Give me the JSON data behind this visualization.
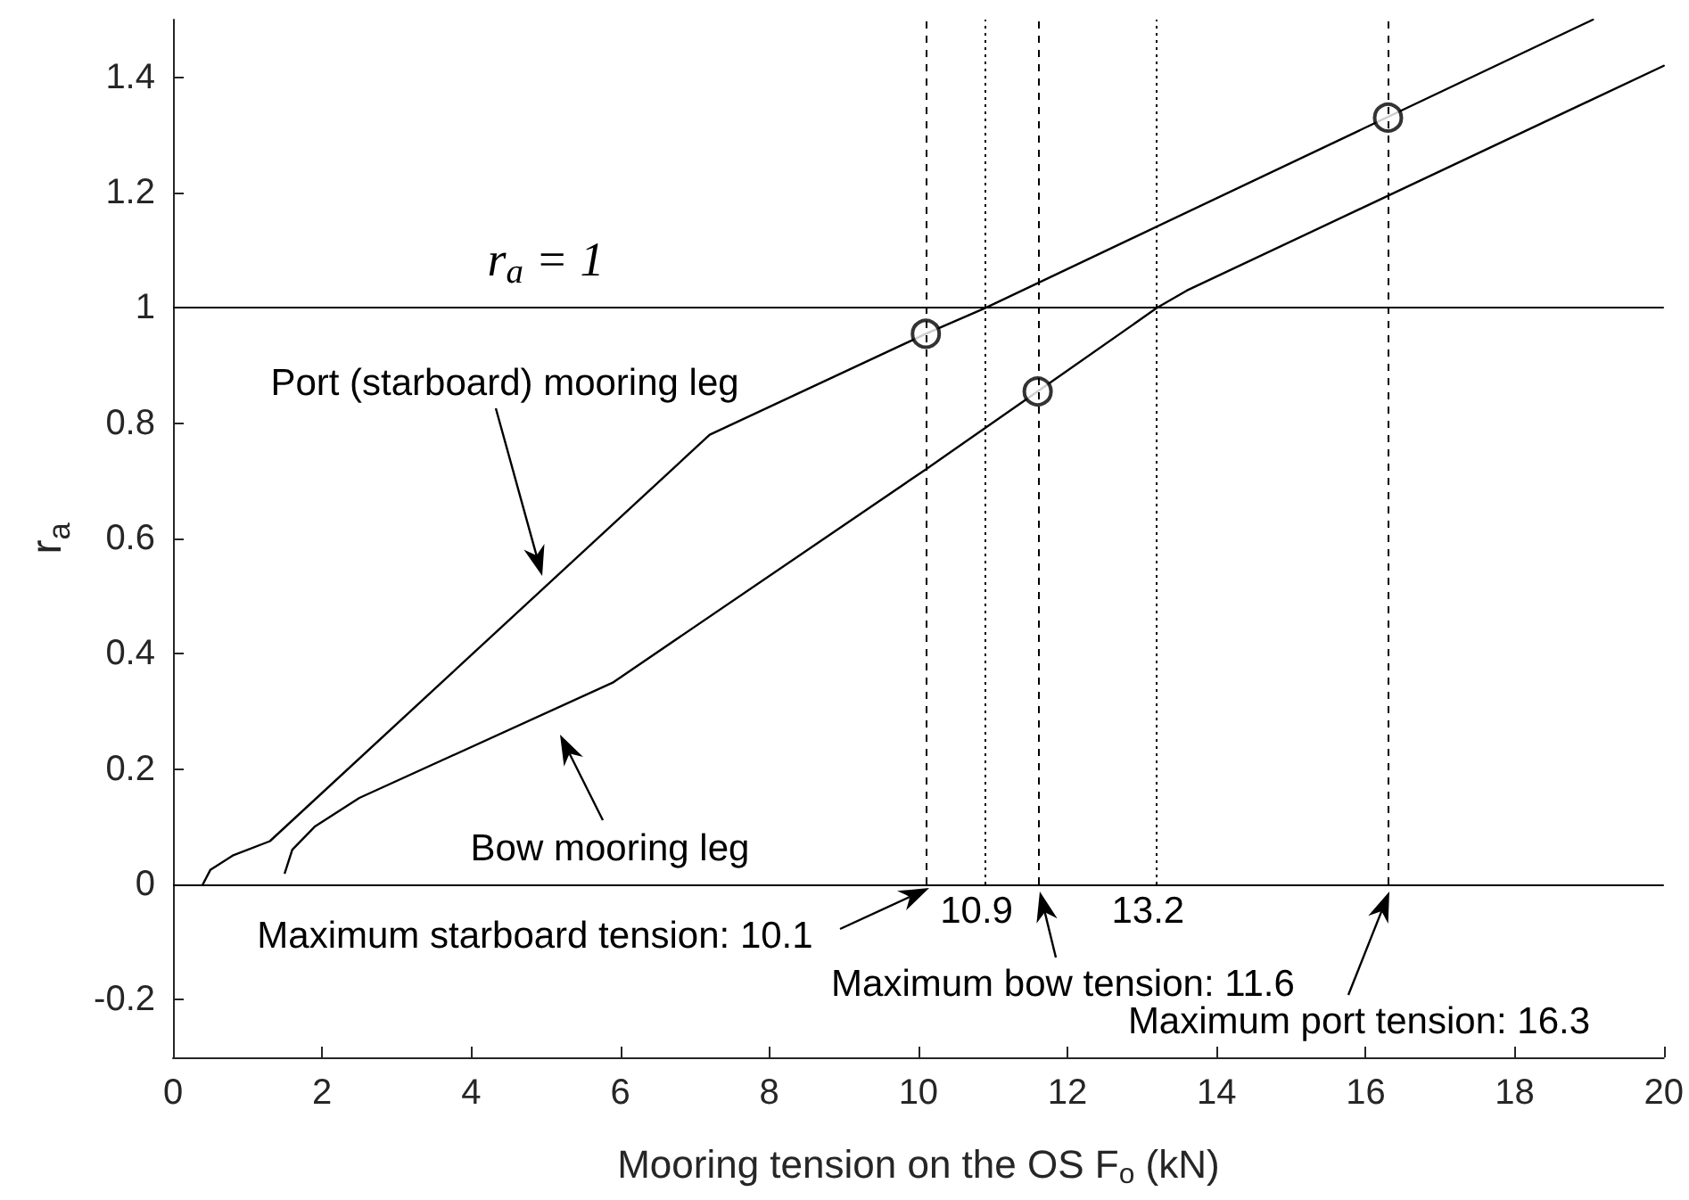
{
  "chart_data": {
    "type": "line",
    "xlabel": "Mooring tension on the OS F$_{o}$ (kN)",
    "ylabel": "r$_{a}$",
    "xlim": [
      0,
      20
    ],
    "xticks": [
      0,
      2,
      4,
      6,
      8,
      10,
      12,
      14,
      16,
      18,
      20
    ],
    "ylim": [
      -0.3,
      1.5
    ],
    "yticks": [
      -0.2,
      0,
      0.2,
      0.4,
      0.6,
      0.8,
      1,
      1.2,
      1.4
    ],
    "grid": false,
    "marker": "none",
    "line_style": "solid",
    "series": [
      {
        "color": "#000000",
        "x": [
          0.4,
          0.5,
          0.8,
          1.3,
          7.2,
          10.1,
          10.9,
          19.05
        ],
        "values": [
          0,
          0.025,
          0.05,
          0.075,
          0.78,
          0.955,
          1.0,
          1.5
        ]
      },
      {
        "color": "#000000",
        "x": [
          1.5,
          1.6,
          1.9,
          2.5,
          5.9,
          10.1,
          11.6,
          13.2,
          13.6,
          20
        ],
        "values": [
          0.02,
          0.06,
          0.1,
          0.15,
          0.35,
          0.72,
          0.855,
          1.0,
          1.03,
          1.42
        ]
      },
      {
        "type": "scatter",
        "marker": "circle",
        "color": "#000000",
        "x": [
          10.1,
          11.6,
          16.3
        ],
        "values": [
          0.955,
          0.855,
          1.33
        ]
      }
    ],
    "ref_lines": [
      {
        "axis": "y",
        "value": 1,
        "label": "r$_{a}$ = 1",
        "color": "#000000",
        "line_style": "solid"
      },
      {
        "axis": "y",
        "value": 0,
        "color": "#000000",
        "line_style": "solid"
      },
      {
        "axis": "x",
        "value": 10.1,
        "color": "#000000",
        "line_style": "dashed"
      },
      {
        "axis": "x",
        "value": 11.6,
        "color": "#000000",
        "line_style": "dashed"
      },
      {
        "axis": "x",
        "value": 16.3,
        "color": "#000000",
        "line_style": "dashed"
      },
      {
        "axis": "x",
        "value": 10.9,
        "label": "10.9",
        "color": "#000000",
        "line_style": "dotted"
      },
      {
        "axis": "x",
        "value": 13.2,
        "label": "13.2",
        "color": "#000000",
        "line_style": "dotted"
      }
    ],
    "annotations": [
      "Port (starboard) mooring leg",
      "Bow mooring leg",
      "Maximum starboard tension: 10.1",
      "Maximum bow tension: 11.6",
      "Maximum port tension: 16.3"
    ]
  }
}
